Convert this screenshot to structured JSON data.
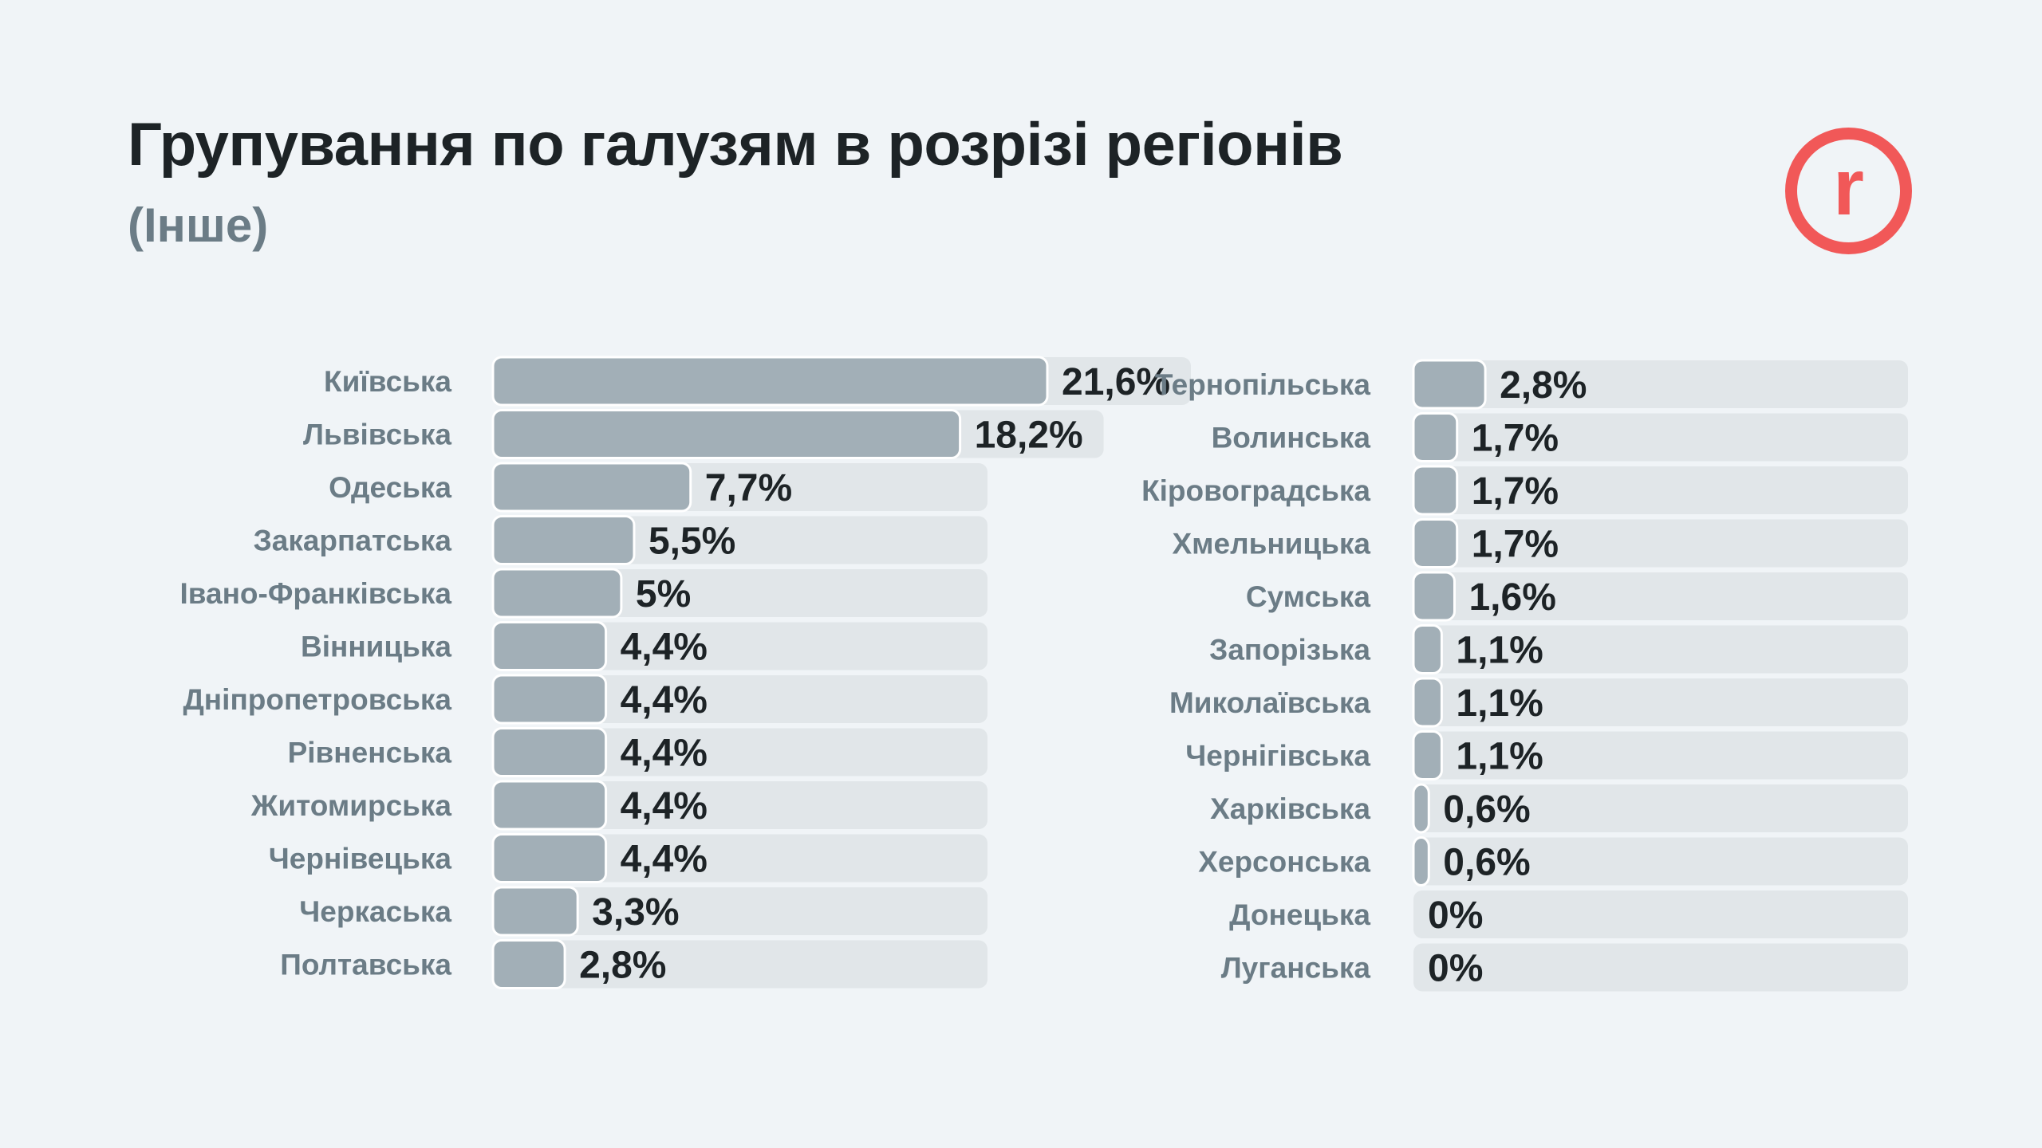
{
  "title": "Групування по галузям в розрізі регіонів",
  "subtitle": "(Інше)",
  "logo": {
    "letter": "r",
    "color": "#f15858",
    "icon": "r-logo-icon"
  },
  "colors": {
    "track": "#e1e6e9",
    "bar": "#a2afb7",
    "label": "#6b7c86",
    "value": "#1d2326"
  },
  "chart_data": {
    "type": "bar",
    "orientation": "horizontal",
    "unit": "%",
    "title": "Групування по галузям в розрізі регіонів",
    "subtitle": "(Інше)",
    "series": [
      {
        "name": "left",
        "categories": [
          "Київська",
          "Львівська",
          "Одеська",
          "Закарпатська",
          "Івано-Франківська",
          "Вінницька",
          "Дніпропетровська",
          "Рівненська",
          "Житомирська",
          "Чернівецька",
          "Черкаська",
          "Полтавська"
        ],
        "values": [
          21.6,
          18.2,
          7.7,
          5.5,
          5,
          4.4,
          4.4,
          4.4,
          4.4,
          4.4,
          3.3,
          2.8
        ],
        "labels": [
          "21,6%",
          "18,2%",
          "7,7%",
          "5,5%",
          "5%",
          "4,4%",
          "4,4%",
          "4,4%",
          "4,4%",
          "4,4%",
          "3,3%",
          "2,8%"
        ]
      },
      {
        "name": "right",
        "categories": [
          "Тернопільська",
          "Волинська",
          "Кіровоградська",
          "Хмельницька",
          "Сумська",
          "Запорізька",
          "Миколаївська",
          "Чернігівська",
          "Харківська",
          "Херсонська",
          "Донецька",
          "Луганська"
        ],
        "values": [
          2.8,
          1.7,
          1.7,
          1.7,
          1.6,
          1.1,
          1.1,
          1.1,
          0.6,
          0.6,
          0,
          0
        ],
        "labels": [
          "2,8%",
          "1,7%",
          "1,7%",
          "1,7%",
          "1,6%",
          "1,1%",
          "1,1%",
          "1,1%",
          "0,6%",
          "0,6%",
          "0%",
          "0%"
        ]
      }
    ],
    "xlim": [
      0,
      22
    ]
  }
}
